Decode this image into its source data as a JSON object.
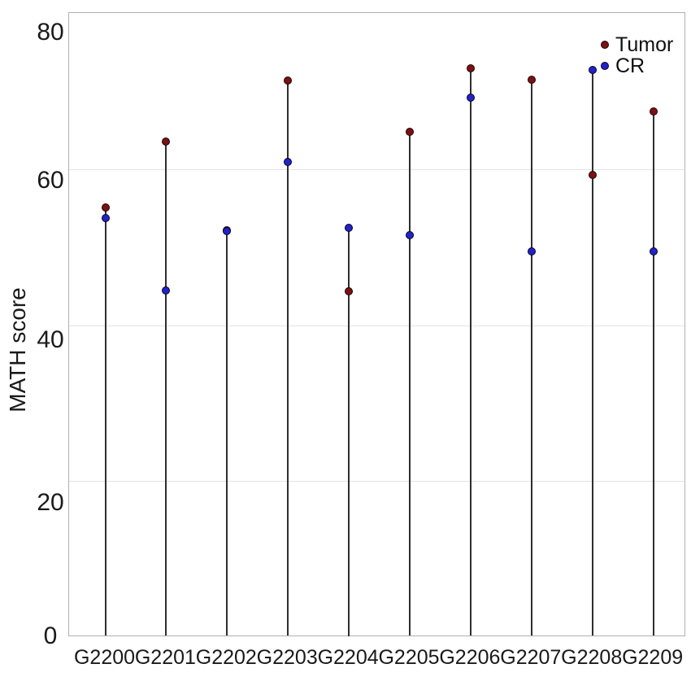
{
  "chart_data": {
    "type": "lollipop",
    "title": "",
    "xlabel": "",
    "ylabel": "MATH score",
    "ylim": [
      0,
      80
    ],
    "yticks": [
      0,
      20,
      40,
      60,
      80
    ],
    "grid": "horizontal",
    "legend_position": "top-right",
    "categories": [
      "G2200",
      "G2201",
      "G2202",
      "G2203",
      "G2204",
      "G2205",
      "G2206",
      "G2207",
      "G2208",
      "G2209"
    ],
    "series": [
      {
        "name": "Tumor",
        "marker_color": "#7a1113",
        "values": [
          55.1,
          63.5,
          52.2,
          71.3,
          44.3,
          64.8,
          72.9,
          71.4,
          59.2,
          67.4
        ]
      },
      {
        "name": "CR",
        "marker_color": "#2222cc",
        "values": [
          53.7,
          44.4,
          52.0,
          60.9,
          52.5,
          51.5,
          69.2,
          49.4,
          72.7,
          49.4
        ]
      }
    ],
    "stem_color": "#2e2e2e"
  },
  "colors": {
    "background": "#ffffff",
    "plot_border": "#b0b0b0",
    "gridline": "#e4e4e4",
    "text": "#1a1a1a"
  }
}
